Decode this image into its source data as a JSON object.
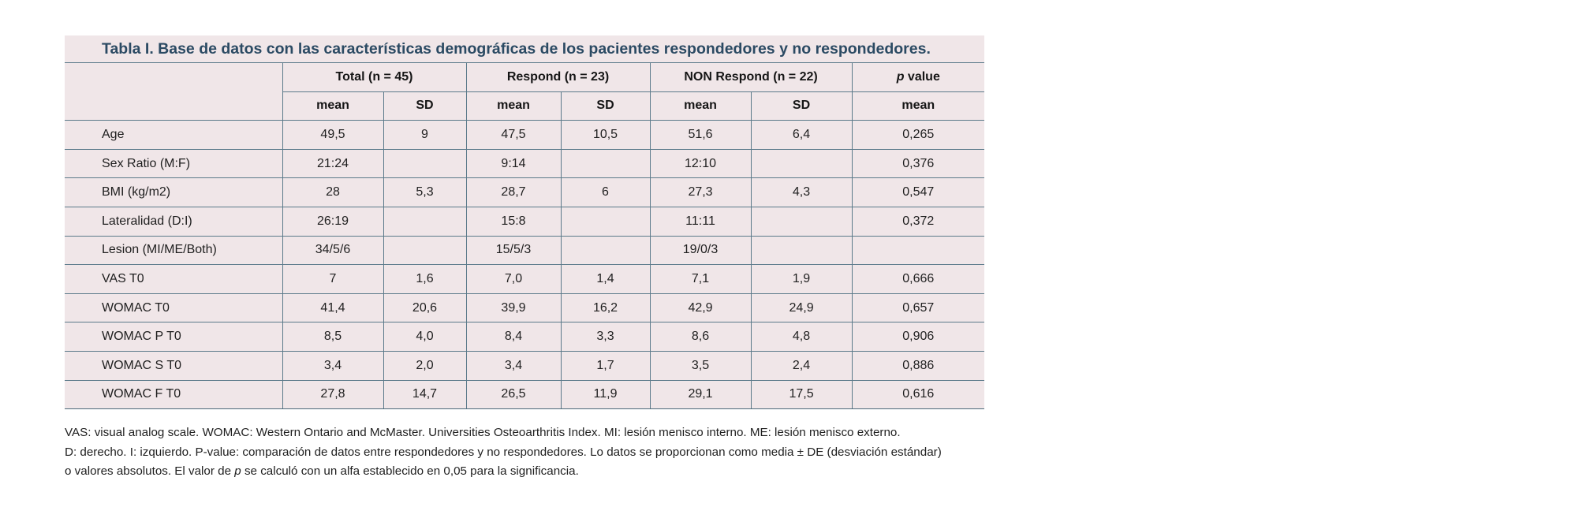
{
  "table": {
    "title": "Tabla I. Base de datos con las características demográficas de los pacientes respondedores y no respondedores.",
    "group_headers": [
      "Total (n = 45)",
      "Respond (n = 23)",
      "NON Respond (n = 22)"
    ],
    "pvalue_header_italic": "p",
    "pvalue_header_rest": " value",
    "sub_headers": [
      "mean",
      "SD",
      "mean",
      "SD",
      "mean",
      "SD",
      "mean"
    ],
    "rows": [
      {
        "label": "Age",
        "cells": [
          "49,5",
          "9",
          "47,5",
          "10,5",
          "51,6",
          "6,4",
          "0,265"
        ]
      },
      {
        "label": "Sex Ratio (M:F)",
        "cells": [
          "21:24",
          "",
          "9:14",
          "",
          "12:10",
          "",
          "0,376"
        ]
      },
      {
        "label": "BMI (kg/m2)",
        "cells": [
          "28",
          "5,3",
          "28,7",
          "6",
          "27,3",
          "4,3",
          "0,547"
        ]
      },
      {
        "label": "Lateralidad (D:I)",
        "cells": [
          "26:19",
          "",
          "15:8",
          "",
          "11:11",
          "",
          "0,372"
        ]
      },
      {
        "label": "Lesion (MI/ME/Both)",
        "cells": [
          "34/5/6",
          "",
          "15/5/3",
          "",
          "19/0/3",
          "",
          ""
        ]
      },
      {
        "label": "VAS T0",
        "cells": [
          "7",
          "1,6",
          "7,0",
          "1,4",
          "7,1",
          "1,9",
          "0,666"
        ]
      },
      {
        "label": "WOMAC T0",
        "cells": [
          "41,4",
          "20,6",
          "39,9",
          "16,2",
          "42,9",
          "24,9",
          "0,657"
        ]
      },
      {
        "label": "WOMAC P T0",
        "cells": [
          "8,5",
          "4,0",
          "8,4",
          "3,3",
          "8,6",
          "4,8",
          "0,906"
        ]
      },
      {
        "label": "WOMAC S T0",
        "cells": [
          "3,4",
          "2,0",
          "3,4",
          "1,7",
          "3,5",
          "2,4",
          "0,886"
        ]
      },
      {
        "label": "WOMAC F T0",
        "cells": [
          "27,8",
          "14,7",
          "26,5",
          "11,9",
          "29,1",
          "17,5",
          "0,616"
        ]
      }
    ]
  },
  "footnote": {
    "line1": "VAS: visual analog scale. WOMAC: Western Ontario and McMaster. Universities Osteoarthritis Index. MI: lesión menisco interno. ME: lesión menisco externo.",
    "line2": "D: derecho. I: izquierdo. P-value: comparación de datos entre respondedores y no respondedores. Lo datos se proporcionan como media ± DE (desviación estándar)",
    "line3_pre": "o valores absolutos. El valor de ",
    "line3_italic": "p",
    "line3_post": " se calculó con un alfa establecido en 0,05 para la significancia."
  }
}
